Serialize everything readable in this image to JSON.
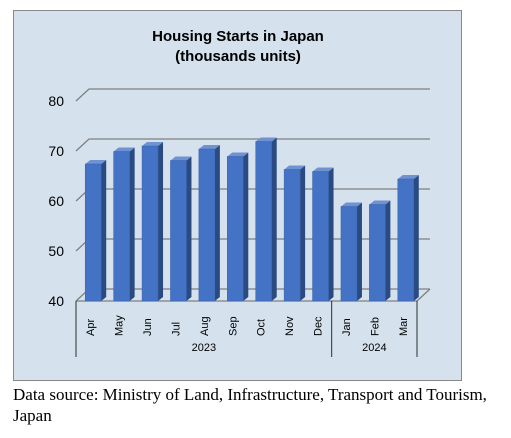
{
  "chart_data": {
    "type": "bar",
    "title": "Housing Starts in Japan",
    "subtitle": "(thousands units)",
    "categories": [
      "Apr",
      "May",
      "Jun",
      "Jul",
      "Aug",
      "Sep",
      "Oct",
      "Nov",
      "Dec",
      "Jan",
      "Feb",
      "Mar"
    ],
    "groups": [
      {
        "label": "2023",
        "count": 9
      },
      {
        "label": "2024",
        "count": 3
      }
    ],
    "series": [
      {
        "values": [
          67.4,
          69.9,
          71.0,
          68.1,
          70.4,
          68.9,
          71.9,
          66.3,
          65.9,
          58.9,
          59.3,
          64.4
        ]
      }
    ],
    "yticks": [
      40,
      50,
      60,
      70,
      80
    ],
    "ylim": [
      40,
      80
    ],
    "grid": true,
    "legend": "none",
    "colors": {
      "bar_front": "#4472c4",
      "bar_side": "#2a4a82",
      "bar_top": "#6f93d2",
      "background": "#d5e2ee",
      "grid": "#7f7f7f"
    }
  },
  "source_note": "Data source: Ministry of Land, Infrastructure, Transport and Tourism, Japan"
}
